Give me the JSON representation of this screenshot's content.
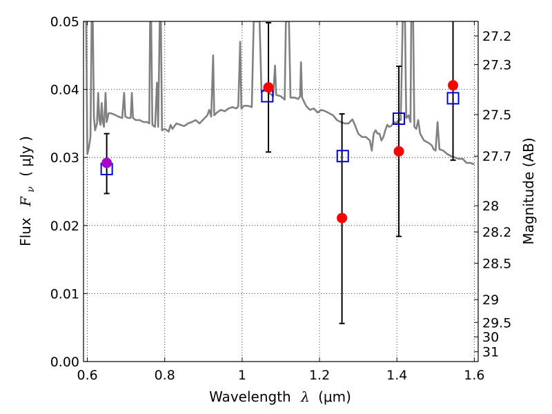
{
  "chart_data": {
    "type": "scatter",
    "title": "",
    "xlabel_text": "Wavelength",
    "xlabel_math": "λ",
    "xlabel_unit": "(μm)",
    "ylabel_text": "Flux",
    "ylabel_math": "F",
    "ylabel_math_sub": "ν",
    "ylabel_unit": "( μJy )",
    "y2label": "Magnitude (AB)",
    "xlim": [
      0.59,
      1.61
    ],
    "ylim": [
      0.0,
      0.05
    ],
    "x_ticks": [
      0.6,
      0.8,
      1.0,
      1.2,
      1.4,
      1.6
    ],
    "x_tick_labels": [
      "0.6",
      "0.8",
      "1",
      "1.2",
      "1.4",
      "1.6"
    ],
    "y_ticks": [
      0.0,
      0.01,
      0.02,
      0.03,
      0.04,
      0.05
    ],
    "y_tick_labels": [
      "0.00",
      "0.01",
      "0.02",
      "0.03",
      "0.04",
      "0.05"
    ],
    "y2_ticks": [
      "27.2",
      "27.3",
      "27.5",
      "27.7",
      "28",
      "28.2",
      "28.5",
      "29",
      "29.5",
      "30",
      "31"
    ],
    "grid": true,
    "colors": {
      "spectrum": "#808080",
      "observed": "#ff0000",
      "model": "#0000cc",
      "overlap": "#aa00cc",
      "errorbar": "#000000"
    },
    "series": [
      {
        "kind": "line",
        "points": [
          [
            0.59,
            0.05
          ],
          [
            0.597,
            0.05
          ],
          [
            0.6,
            0.0305
          ],
          [
            0.604,
            0.0315
          ],
          [
            0.608,
            0.033
          ],
          [
            0.611,
            0.05
          ],
          [
            0.614,
            0.05
          ],
          [
            0.617,
            0.036
          ],
          [
            0.62,
            0.034
          ],
          [
            0.625,
            0.035
          ],
          [
            0.628,
            0.0395
          ],
          [
            0.631,
            0.0355
          ],
          [
            0.634,
            0.0348
          ],
          [
            0.637,
            0.038
          ],
          [
            0.64,
            0.0352
          ],
          [
            0.643,
            0.0345
          ],
          [
            0.647,
            0.0395
          ],
          [
            0.65,
            0.0352
          ],
          [
            0.655,
            0.0365
          ],
          [
            0.66,
            0.0365
          ],
          [
            0.67,
            0.0363
          ],
          [
            0.68,
            0.036
          ],
          [
            0.69,
            0.0358
          ],
          [
            0.695,
            0.0395
          ],
          [
            0.698,
            0.036
          ],
          [
            0.705,
            0.0358
          ],
          [
            0.712,
            0.0358
          ],
          [
            0.715,
            0.0395
          ],
          [
            0.718,
            0.0358
          ],
          [
            0.725,
            0.0355
          ],
          [
            0.735,
            0.0355
          ],
          [
            0.745,
            0.0352
          ],
          [
            0.755,
            0.0352
          ],
          [
            0.76,
            0.035
          ],
          [
            0.762,
            0.05
          ],
          [
            0.765,
            0.05
          ],
          [
            0.768,
            0.0348
          ],
          [
            0.775,
            0.0345
          ],
          [
            0.78,
            0.041
          ],
          [
            0.783,
            0.0345
          ],
          [
            0.787,
            0.05
          ],
          [
            0.79,
            0.05
          ],
          [
            0.793,
            0.034
          ],
          [
            0.8,
            0.0342
          ],
          [
            0.81,
            0.0338
          ],
          [
            0.815,
            0.0348
          ],
          [
            0.82,
            0.0342
          ],
          [
            0.825,
            0.0346
          ],
          [
            0.83,
            0.035
          ],
          [
            0.84,
            0.0348
          ],
          [
            0.85,
            0.0346
          ],
          [
            0.86,
            0.035
          ],
          [
            0.87,
            0.0352
          ],
          [
            0.88,
            0.0355
          ],
          [
            0.89,
            0.035
          ],
          [
            0.9,
            0.0356
          ],
          [
            0.91,
            0.0362
          ],
          [
            0.915,
            0.037
          ],
          [
            0.92,
            0.036
          ],
          [
            0.925,
            0.045
          ],
          [
            0.928,
            0.0362
          ],
          [
            0.935,
            0.0366
          ],
          [
            0.945,
            0.037
          ],
          [
            0.955,
            0.0368
          ],
          [
            0.965,
            0.0372
          ],
          [
            0.975,
            0.0374
          ],
          [
            0.985,
            0.0372
          ],
          [
            0.99,
            0.0375
          ],
          [
            0.995,
            0.047
          ],
          [
            0.998,
            0.0372
          ],
          [
            1.005,
            0.0376
          ],
          [
            1.015,
            0.0376
          ],
          [
            1.025,
            0.0374
          ],
          [
            1.03,
            0.05
          ],
          [
            1.045,
            0.05
          ],
          [
            1.05,
            0.0396
          ],
          [
            1.06,
            0.04
          ],
          [
            1.07,
            0.0395
          ],
          [
            1.08,
            0.039
          ],
          [
            1.085,
            0.0435
          ],
          [
            1.088,
            0.0392
          ],
          [
            1.1,
            0.039
          ],
          [
            1.11,
            0.0385
          ],
          [
            1.113,
            0.05
          ],
          [
            1.121,
            0.05
          ],
          [
            1.125,
            0.0388
          ],
          [
            1.135,
            0.0388
          ],
          [
            1.145,
            0.0386
          ],
          [
            1.15,
            0.039
          ],
          [
            1.152,
            0.044
          ],
          [
            1.155,
            0.0388
          ],
          [
            1.165,
            0.0376
          ],
          [
            1.175,
            0.037
          ],
          [
            1.185,
            0.0372
          ],
          [
            1.195,
            0.0366
          ],
          [
            1.205,
            0.037
          ],
          [
            1.215,
            0.0368
          ],
          [
            1.225,
            0.0365
          ],
          [
            1.235,
            0.0362
          ],
          [
            1.245,
            0.0355
          ],
          [
            1.255,
            0.0352
          ],
          [
            1.265,
            0.035
          ],
          [
            1.275,
            0.035
          ],
          [
            1.285,
            0.0356
          ],
          [
            1.29,
            0.035
          ],
          [
            1.3,
            0.0335
          ],
          [
            1.31,
            0.033
          ],
          [
            1.32,
            0.033
          ],
          [
            1.33,
            0.0325
          ],
          [
            1.335,
            0.031
          ],
          [
            1.34,
            0.0335
          ],
          [
            1.345,
            0.034
          ],
          [
            1.35,
            0.0335
          ],
          [
            1.355,
            0.0335
          ],
          [
            1.36,
            0.0325
          ],
          [
            1.365,
            0.033
          ],
          [
            1.37,
            0.034
          ],
          [
            1.375,
            0.0348
          ],
          [
            1.38,
            0.0345
          ],
          [
            1.385,
            0.0346
          ],
          [
            1.39,
            0.035
          ],
          [
            1.395,
            0.0352
          ],
          [
            1.4,
            0.035
          ],
          [
            1.405,
            0.0356
          ],
          [
            1.41,
            0.0355
          ],
          [
            1.415,
            0.05
          ],
          [
            1.421,
            0.05
          ],
          [
            1.424,
            0.0358
          ],
          [
            1.43,
            0.0362
          ],
          [
            1.435,
            0.0352
          ],
          [
            1.437,
            0.05
          ],
          [
            1.442,
            0.05
          ],
          [
            1.445,
            0.0345
          ],
          [
            1.45,
            0.0342
          ],
          [
            1.455,
            0.0355
          ],
          [
            1.46,
            0.0335
          ],
          [
            1.465,
            0.033
          ],
          [
            1.47,
            0.0325
          ],
          [
            1.48,
            0.0322
          ],
          [
            1.49,
            0.0318
          ],
          [
            1.495,
            0.0312
          ],
          [
            1.5,
            0.031
          ],
          [
            1.505,
            0.0352
          ],
          [
            1.51,
            0.0312
          ],
          [
            1.52,
            0.031
          ],
          [
            1.53,
            0.0305
          ],
          [
            1.54,
            0.0302
          ],
          [
            1.55,
            0.03
          ],
          [
            1.56,
            0.0298
          ],
          [
            1.57,
            0.0298
          ],
          [
            1.58,
            0.0292
          ],
          [
            1.59,
            0.0292
          ],
          [
            1.6,
            0.029
          ]
        ]
      },
      {
        "kind": "model",
        "x": [
          0.65,
          1.065,
          1.26,
          1.405,
          1.545
        ],
        "y": [
          0.0283,
          0.039,
          0.0302,
          0.0357,
          0.0387
        ]
      },
      {
        "kind": "observed",
        "x": [
          0.65,
          1.068,
          1.258,
          1.405,
          1.545
        ],
        "y": [
          0.0292,
          0.0403,
          0.0211,
          0.0309,
          0.0406
        ],
        "err_low": [
          0.0045,
          0.0095,
          0.0155,
          0.0125,
          0.011
        ],
        "err_high": [
          0.0043,
          0.0095,
          0.0153,
          0.0125,
          0.011
        ]
      }
    ]
  }
}
